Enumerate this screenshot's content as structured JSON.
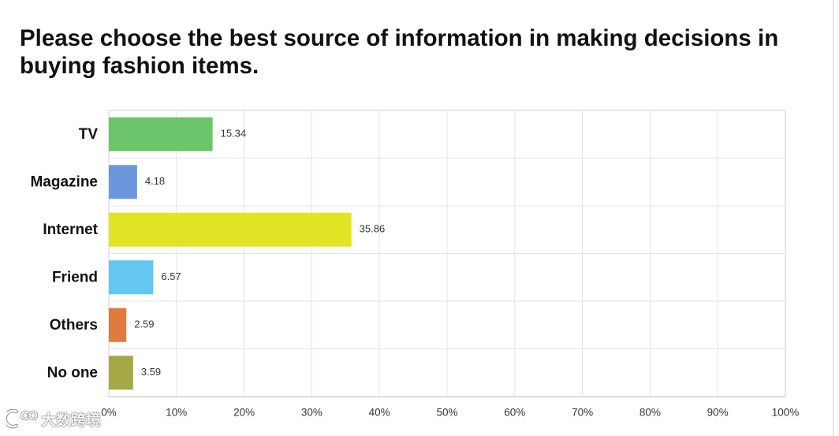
{
  "chart_data": {
    "type": "bar",
    "orientation": "horizontal",
    "title": "Please choose the best source of information in making decisions in buying fashion items.",
    "xlabel": "",
    "ylabel": "",
    "categories": [
      "TV",
      "Magazine",
      "Internet",
      "Friend",
      "Others",
      "No one"
    ],
    "values": [
      15.34,
      4.18,
      35.86,
      6.57,
      2.59,
      3.59
    ],
    "colors": [
      "#6cc56b",
      "#6d97dc",
      "#e1e425",
      "#63c7f2",
      "#df7b3f",
      "#a6a846"
    ],
    "xlim": [
      0,
      100
    ],
    "xticks": [
      0,
      10,
      20,
      30,
      40,
      50,
      60,
      70,
      80,
      90,
      100
    ],
    "xtick_labels": [
      "0%",
      "10%",
      "20%",
      "30%",
      "40%",
      "50%",
      "60%",
      "70%",
      "80%",
      "90%",
      "100%"
    ],
    "grid": true,
    "legend": "none"
  },
  "watermark": {
    "text": "大数跨境"
  }
}
